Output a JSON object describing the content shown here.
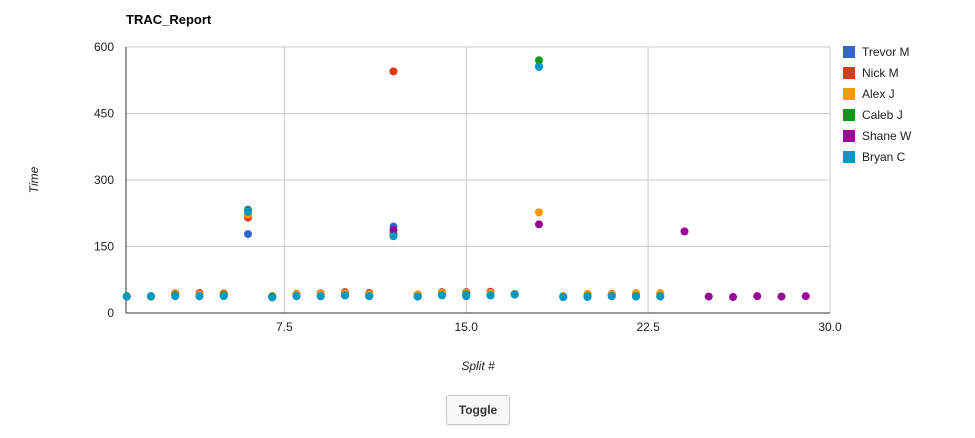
{
  "toggle_label": "Toggle",
  "chart_data": {
    "type": "scatter",
    "title": "TRAC_Report",
    "xlabel": "Split #",
    "ylabel": "Time",
    "xlim": [
      0.97,
      30.0
    ],
    "ylim": [
      0,
      600
    ],
    "xticks": [
      "7.5",
      "15.0",
      "22.5",
      "30.0"
    ],
    "xtick_values": [
      7.5,
      15.0,
      22.5,
      30.0
    ],
    "yticks": [
      "0",
      "150",
      "300",
      "450",
      "600"
    ],
    "ytick_values": [
      0,
      150,
      300,
      450,
      600
    ],
    "grid": true,
    "legend_position": "right",
    "series": [
      {
        "name": "Trevor M",
        "color": "#3366cc",
        "points": [
          [
            1,
            37
          ],
          [
            2,
            38
          ],
          [
            3,
            40
          ],
          [
            4,
            40
          ],
          [
            5,
            40
          ],
          [
            6,
            233
          ],
          [
            6,
            178
          ],
          [
            7,
            37
          ],
          [
            8,
            40
          ],
          [
            9,
            38
          ],
          [
            10,
            40
          ],
          [
            11,
            40
          ],
          [
            12,
            195
          ],
          [
            13,
            38
          ],
          [
            14,
            42
          ],
          [
            15,
            38
          ],
          [
            16,
            40
          ],
          [
            17,
            42
          ],
          [
            18,
            557
          ],
          [
            19,
            37
          ],
          [
            20,
            38
          ],
          [
            21,
            40
          ],
          [
            22,
            40
          ],
          [
            23,
            38
          ]
        ]
      },
      {
        "name": "Nick M",
        "color": "#dc3912",
        "points": [
          [
            1,
            38
          ],
          [
            2,
            38
          ],
          [
            3,
            44
          ],
          [
            4,
            45
          ],
          [
            5,
            44
          ],
          [
            6,
            215
          ],
          [
            7,
            38
          ],
          [
            8,
            43
          ],
          [
            9,
            44
          ],
          [
            10,
            47
          ],
          [
            11,
            45
          ],
          [
            12,
            545
          ],
          [
            13,
            42
          ],
          [
            14,
            47
          ],
          [
            15,
            47
          ],
          [
            16,
            48
          ],
          [
            17,
            43
          ],
          [
            19,
            38
          ],
          [
            20,
            40
          ],
          [
            21,
            43
          ],
          [
            22,
            43
          ],
          [
            23,
            42
          ]
        ]
      },
      {
        "name": "Alex J",
        "color": "#ff9900",
        "points": [
          [
            1,
            37
          ],
          [
            2,
            38
          ],
          [
            3,
            42
          ],
          [
            4,
            42
          ],
          [
            5,
            42
          ],
          [
            6,
            222
          ],
          [
            7,
            37
          ],
          [
            8,
            42
          ],
          [
            9,
            42
          ],
          [
            10,
            44
          ],
          [
            11,
            42
          ],
          [
            12,
            180
          ],
          [
            13,
            42
          ],
          [
            14,
            45
          ],
          [
            15,
            45
          ],
          [
            16,
            45
          ],
          [
            17,
            43
          ],
          [
            18,
            227
          ],
          [
            19,
            38
          ],
          [
            20,
            43
          ],
          [
            21,
            42
          ],
          [
            22,
            45
          ],
          [
            23,
            45
          ]
        ]
      },
      {
        "name": "Caleb J",
        "color": "#109618",
        "points": [
          [
            1,
            38
          ],
          [
            2,
            37
          ],
          [
            3,
            40
          ],
          [
            4,
            38
          ],
          [
            5,
            40
          ],
          [
            6,
            230
          ],
          [
            7,
            37
          ],
          [
            8,
            38
          ],
          [
            9,
            38
          ],
          [
            10,
            40
          ],
          [
            11,
            38
          ],
          [
            12,
            177
          ],
          [
            13,
            37
          ],
          [
            14,
            40
          ],
          [
            15,
            42
          ],
          [
            16,
            40
          ],
          [
            17,
            42
          ],
          [
            18,
            570
          ],
          [
            19,
            36
          ],
          [
            20,
            38
          ],
          [
            21,
            38
          ],
          [
            22,
            38
          ],
          [
            23,
            38
          ]
        ]
      },
      {
        "name": "Shane W",
        "color": "#990099",
        "points": [
          [
            12,
            187
          ],
          [
            18,
            200
          ],
          [
            24,
            184
          ],
          [
            25,
            37
          ],
          [
            26,
            36
          ],
          [
            27,
            38
          ],
          [
            28,
            37
          ],
          [
            29,
            38
          ]
        ]
      },
      {
        "name": "Bryan C",
        "color": "#0099c6",
        "points": [
          [
            1,
            37
          ],
          [
            2,
            38
          ],
          [
            3,
            38
          ],
          [
            4,
            38
          ],
          [
            5,
            38
          ],
          [
            6,
            228
          ],
          [
            7,
            35
          ],
          [
            8,
            38
          ],
          [
            9,
            38
          ],
          [
            10,
            40
          ],
          [
            11,
            38
          ],
          [
            12,
            173
          ],
          [
            13,
            37
          ],
          [
            14,
            40
          ],
          [
            15,
            40
          ],
          [
            16,
            40
          ],
          [
            17,
            42
          ],
          [
            18,
            555
          ],
          [
            19,
            36
          ],
          [
            20,
            36
          ],
          [
            21,
            38
          ],
          [
            22,
            37
          ],
          [
            23,
            37
          ]
        ]
      }
    ]
  }
}
